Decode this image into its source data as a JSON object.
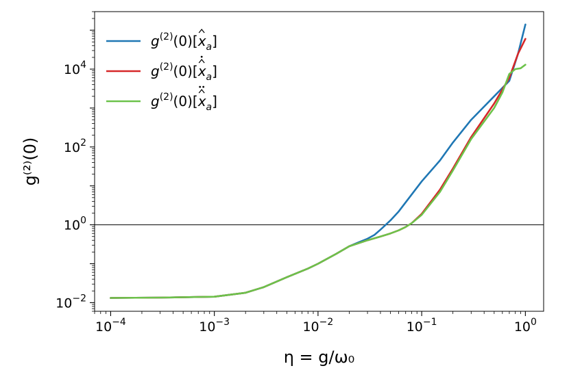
{
  "chart_data": {
    "type": "line",
    "xscale": "log",
    "yscale": "log",
    "xlim": [
      7e-05,
      1.5
    ],
    "ylim": [
      0.006,
      300000
    ],
    "xlabel": "η = g/ω₀",
    "ylabel": "g⁽²⁾(0)",
    "x_ticks": [
      0.0001,
      0.001,
      0.01,
      0.1,
      1
    ],
    "x_tick_labels": [
      {
        "base": "10",
        "exp": "−4"
      },
      {
        "base": "10",
        "exp": "−3"
      },
      {
        "base": "10",
        "exp": "−2"
      },
      {
        "base": "10",
        "exp": "−1"
      },
      {
        "base": "10",
        "exp": "0"
      }
    ],
    "y_ticks": [
      0.01,
      1,
      100,
      10000
    ],
    "y_tick_labels": [
      {
        "base": "10",
        "exp": "−2"
      },
      {
        "base": "10",
        "exp": "0"
      },
      {
        "base": "10",
        "exp": "2"
      },
      {
        "base": "10",
        "exp": "4"
      }
    ],
    "hline": {
      "y": 1,
      "color": "#000000"
    },
    "grid": false,
    "legend_position": "upper-left",
    "legend_prefix": "g",
    "legend_sup": "(2)",
    "legend_mid": "(0)[",
    "legend_var": "x",
    "legend_sub": "a",
    "legend_close": "]",
    "series": [
      {
        "id": "xa",
        "color": "#1f77b4",
        "accent": "hat",
        "x": [
          0.0001,
          0.0003,
          0.001,
          0.002,
          0.003,
          0.005,
          0.008,
          0.01,
          0.015,
          0.02,
          0.025,
          0.03,
          0.035,
          0.04,
          0.045,
          0.05,
          0.06,
          0.08,
          0.1,
          0.15,
          0.2,
          0.3,
          0.5,
          0.7,
          0.85,
          1.0
        ],
        "y": [
          0.0132,
          0.0135,
          0.0142,
          0.018,
          0.025,
          0.045,
          0.075,
          0.1,
          0.18,
          0.28,
          0.36,
          0.44,
          0.55,
          0.75,
          1.0,
          1.3,
          2.2,
          6.0,
          13,
          45,
          130,
          500,
          2000,
          5000,
          25000,
          140000
        ]
      },
      {
        "id": "xa-dot",
        "color": "#d62728",
        "accent": "hat-dot",
        "x": [
          0.0001,
          0.0003,
          0.001,
          0.002,
          0.003,
          0.005,
          0.008,
          0.01,
          0.015,
          0.02,
          0.03,
          0.04,
          0.05,
          0.06,
          0.07,
          0.08,
          0.1,
          0.15,
          0.2,
          0.3,
          0.5,
          0.7,
          0.85,
          1.0
        ],
        "y": [
          0.0132,
          0.0135,
          0.0142,
          0.018,
          0.025,
          0.045,
          0.075,
          0.1,
          0.18,
          0.28,
          0.4,
          0.5,
          0.6,
          0.72,
          0.88,
          1.1,
          1.9,
          8,
          28,
          180,
          1300,
          6000,
          25000,
          60000
        ]
      },
      {
        "id": "xa-ddot",
        "color": "#6cc24a",
        "accent": "hat-ddot",
        "x": [
          0.0001,
          0.0003,
          0.001,
          0.002,
          0.003,
          0.005,
          0.008,
          0.01,
          0.015,
          0.02,
          0.03,
          0.04,
          0.05,
          0.06,
          0.07,
          0.08,
          0.1,
          0.15,
          0.2,
          0.3,
          0.5,
          0.6,
          0.7,
          0.8,
          0.9,
          1.0
        ],
        "y": [
          0.0132,
          0.0135,
          0.0142,
          0.018,
          0.025,
          0.045,
          0.075,
          0.1,
          0.18,
          0.28,
          0.4,
          0.5,
          0.6,
          0.72,
          0.88,
          1.1,
          1.8,
          7,
          25,
          160,
          1000,
          2500,
          7500,
          10000,
          10500,
          13000
        ]
      }
    ]
  }
}
